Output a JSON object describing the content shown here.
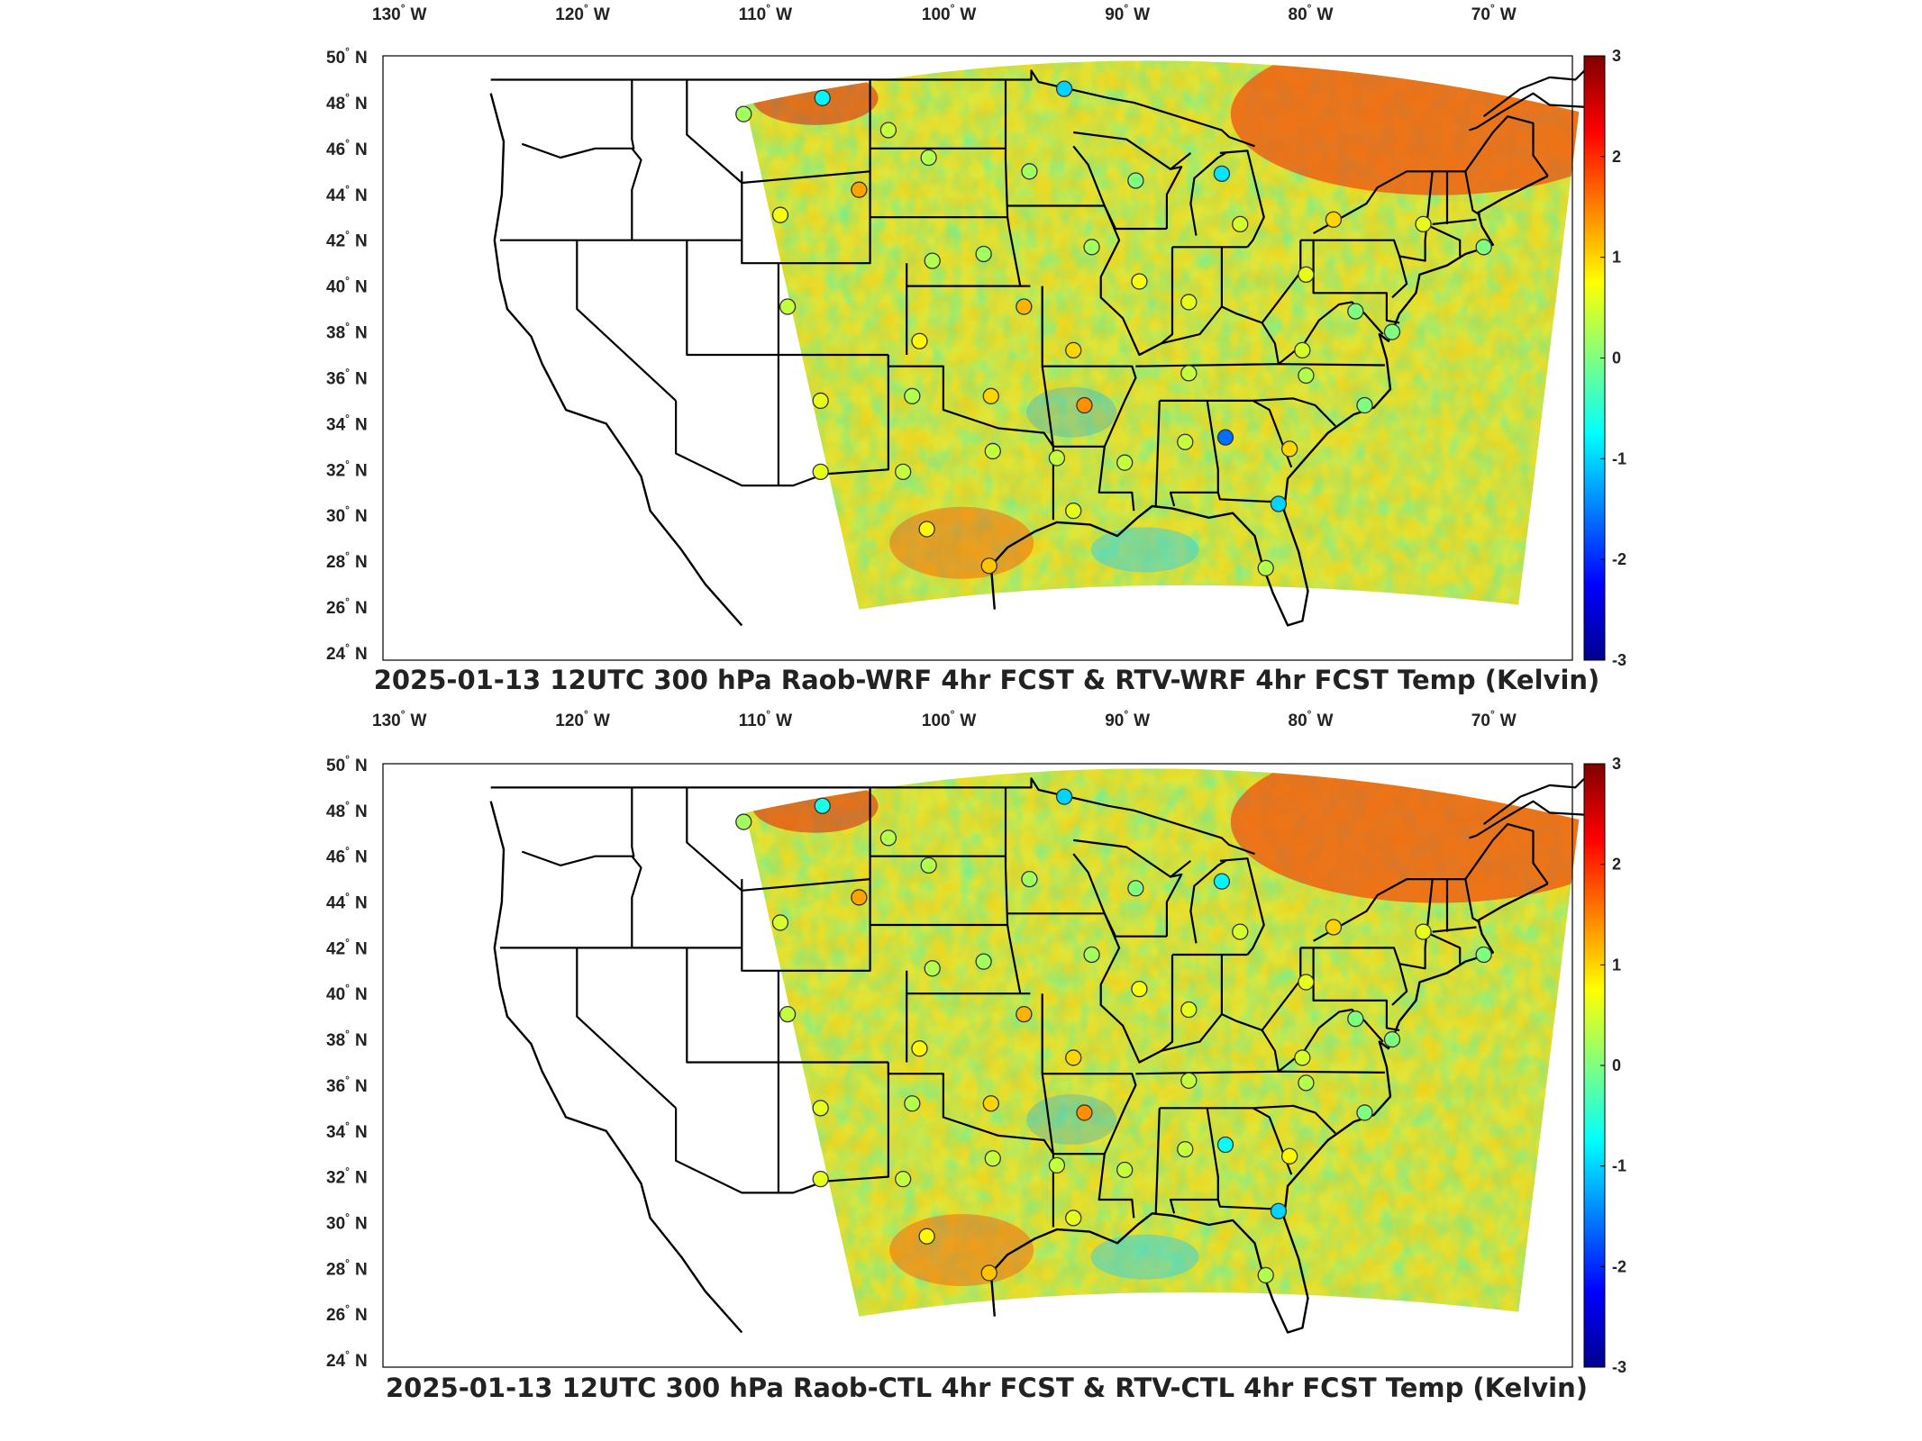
{
  "panels": [
    {
      "title": "2025-01-13 12UTC 300 hPa Raob-WRF 4hr FCST & RTV-WRF 4hr FCST Temp (Kelvin)",
      "stations": [
        {
          "lon": -110.9,
          "lat": 47.5,
          "v": 0.2
        },
        {
          "lon": -106.6,
          "lat": 48.2,
          "v": -0.8
        },
        {
          "lon": -93.4,
          "lat": 48.6,
          "v": -1.0
        },
        {
          "lon": -103.0,
          "lat": 46.8,
          "v": 0.4
        },
        {
          "lon": -100.8,
          "lat": 45.6,
          "v": 0.3
        },
        {
          "lon": -95.3,
          "lat": 45.0,
          "v": 0.2
        },
        {
          "lon": -89.5,
          "lat": 44.6,
          "v": 0.0
        },
        {
          "lon": -84.8,
          "lat": 44.9,
          "v": -0.9
        },
        {
          "lon": -108.9,
          "lat": 43.1,
          "v": 0.7
        },
        {
          "lon": -104.6,
          "lat": 44.2,
          "v": 1.3
        },
        {
          "lon": -100.6,
          "lat": 41.1,
          "v": 0.3
        },
        {
          "lon": -97.8,
          "lat": 41.4,
          "v": 0.2
        },
        {
          "lon": -91.9,
          "lat": 41.7,
          "v": 0.2
        },
        {
          "lon": -89.3,
          "lat": 40.2,
          "v": 0.7
        },
        {
          "lon": -83.8,
          "lat": 42.7,
          "v": 0.5
        },
        {
          "lon": -78.7,
          "lat": 42.9,
          "v": 1.0
        },
        {
          "lon": -73.8,
          "lat": 42.7,
          "v": 0.6
        },
        {
          "lon": -80.2,
          "lat": 40.5,
          "v": 0.6
        },
        {
          "lon": -86.6,
          "lat": 39.3,
          "v": 0.6
        },
        {
          "lon": -77.5,
          "lat": 38.9,
          "v": 0.0
        },
        {
          "lon": -75.5,
          "lat": 38.0,
          "v": 0.0
        },
        {
          "lon": -70.5,
          "lat": 41.7,
          "v": 0.0
        },
        {
          "lon": -108.5,
          "lat": 39.1,
          "v": 0.4
        },
        {
          "lon": -101.3,
          "lat": 37.6,
          "v": 0.8
        },
        {
          "lon": -95.6,
          "lat": 39.1,
          "v": 1.2
        },
        {
          "lon": -92.9,
          "lat": 37.2,
          "v": 1.0
        },
        {
          "lon": -80.4,
          "lat": 37.2,
          "v": 0.5
        },
        {
          "lon": -86.6,
          "lat": 36.2,
          "v": 0.4
        },
        {
          "lon": -80.2,
          "lat": 36.1,
          "v": 0.3
        },
        {
          "lon": -77.0,
          "lat": 34.8,
          "v": 0.0
        },
        {
          "lon": -106.7,
          "lat": 35.0,
          "v": 0.6
        },
        {
          "lon": -101.7,
          "lat": 35.2,
          "v": 0.3
        },
        {
          "lon": -97.4,
          "lat": 35.2,
          "v": 1.0
        },
        {
          "lon": -92.3,
          "lat": 34.8,
          "v": 1.4
        },
        {
          "lon": -97.3,
          "lat": 32.8,
          "v": 0.4
        },
        {
          "lon": -93.8,
          "lat": 32.5,
          "v": 0.4
        },
        {
          "lon": -90.1,
          "lat": 32.3,
          "v": 0.4
        },
        {
          "lon": -86.8,
          "lat": 33.2,
          "v": 0.4
        },
        {
          "lon": -84.6,
          "lat": 33.4,
          "v": -1.6
        },
        {
          "lon": -81.1,
          "lat": 32.9,
          "v": 1.0
        },
        {
          "lon": -106.7,
          "lat": 31.9,
          "v": 0.6
        },
        {
          "lon": -102.2,
          "lat": 31.9,
          "v": 0.4
        },
        {
          "lon": -100.9,
          "lat": 29.4,
          "v": 0.8
        },
        {
          "lon": -97.5,
          "lat": 27.8,
          "v": 1.1
        },
        {
          "lon": -92.9,
          "lat": 30.2,
          "v": 0.6
        },
        {
          "lon": -81.7,
          "lat": 30.5,
          "v": -1.0
        },
        {
          "lon": -82.4,
          "lat": 27.7,
          "v": 0.3
        }
      ]
    },
    {
      "title": "2025-01-13 12UTC 300 hPa Raob-CTL 4hr FCST & RTV-CTL 4hr FCST Temp (Kelvin)",
      "stations": [
        {
          "lon": -110.9,
          "lat": 47.5,
          "v": 0.2
        },
        {
          "lon": -106.6,
          "lat": 48.2,
          "v": -0.6
        },
        {
          "lon": -93.4,
          "lat": 48.6,
          "v": -1.0
        },
        {
          "lon": -103.0,
          "lat": 46.8,
          "v": 0.3
        },
        {
          "lon": -100.8,
          "lat": 45.6,
          "v": 0.3
        },
        {
          "lon": -95.3,
          "lat": 45.0,
          "v": 0.2
        },
        {
          "lon": -89.5,
          "lat": 44.6,
          "v": 0.0
        },
        {
          "lon": -84.8,
          "lat": 44.9,
          "v": -0.8
        },
        {
          "lon": -108.9,
          "lat": 43.1,
          "v": 0.5
        },
        {
          "lon": -104.6,
          "lat": 44.2,
          "v": 1.3
        },
        {
          "lon": -100.6,
          "lat": 41.1,
          "v": 0.3
        },
        {
          "lon": -97.8,
          "lat": 41.4,
          "v": 0.2
        },
        {
          "lon": -91.9,
          "lat": 41.7,
          "v": 0.2
        },
        {
          "lon": -89.3,
          "lat": 40.2,
          "v": 0.7
        },
        {
          "lon": -83.8,
          "lat": 42.7,
          "v": 0.5
        },
        {
          "lon": -78.7,
          "lat": 42.9,
          "v": 1.0
        },
        {
          "lon": -73.8,
          "lat": 42.7,
          "v": 0.6
        },
        {
          "lon": -80.2,
          "lat": 40.5,
          "v": 0.6
        },
        {
          "lon": -86.6,
          "lat": 39.3,
          "v": 0.6
        },
        {
          "lon": -77.5,
          "lat": 38.9,
          "v": 0.0
        },
        {
          "lon": -75.5,
          "lat": 38.0,
          "v": 0.0
        },
        {
          "lon": -70.5,
          "lat": 41.7,
          "v": 0.0
        },
        {
          "lon": -108.5,
          "lat": 39.1,
          "v": 0.4
        },
        {
          "lon": -101.3,
          "lat": 37.6,
          "v": 0.8
        },
        {
          "lon": -95.6,
          "lat": 39.1,
          "v": 1.2
        },
        {
          "lon": -92.9,
          "lat": 37.2,
          "v": 1.0
        },
        {
          "lon": -80.4,
          "lat": 37.2,
          "v": 0.5
        },
        {
          "lon": -86.6,
          "lat": 36.2,
          "v": 0.4
        },
        {
          "lon": -80.2,
          "lat": 36.1,
          "v": 0.3
        },
        {
          "lon": -77.0,
          "lat": 34.8,
          "v": 0.0
        },
        {
          "lon": -106.7,
          "lat": 35.0,
          "v": 0.6
        },
        {
          "lon": -101.7,
          "lat": 35.2,
          "v": 0.3
        },
        {
          "lon": -97.4,
          "lat": 35.2,
          "v": 1.0
        },
        {
          "lon": -92.3,
          "lat": 34.8,
          "v": 1.4
        },
        {
          "lon": -97.3,
          "lat": 32.8,
          "v": 0.4
        },
        {
          "lon": -93.8,
          "lat": 32.5,
          "v": 0.4
        },
        {
          "lon": -90.1,
          "lat": 32.3,
          "v": 0.4
        },
        {
          "lon": -86.8,
          "lat": 33.2,
          "v": 0.4
        },
        {
          "lon": -84.6,
          "lat": 33.4,
          "v": -0.7
        },
        {
          "lon": -81.1,
          "lat": 32.9,
          "v": 0.8
        },
        {
          "lon": -106.7,
          "lat": 31.9,
          "v": 0.6
        },
        {
          "lon": -102.2,
          "lat": 31.9,
          "v": 0.4
        },
        {
          "lon": -100.9,
          "lat": 29.4,
          "v": 0.8
        },
        {
          "lon": -97.5,
          "lat": 27.8,
          "v": 1.1
        },
        {
          "lon": -92.9,
          "lat": 30.2,
          "v": 0.6
        },
        {
          "lon": -81.7,
          "lat": 30.5,
          "v": -1.0
        },
        {
          "lon": -82.4,
          "lat": 27.7,
          "v": 0.3
        }
      ]
    }
  ],
  "lon_ticks": [
    "130",
    "120",
    "110",
    "100",
    "90",
    "80",
    "70"
  ],
  "lon_suffix": "W",
  "lat_ticks": [
    "50",
    "48",
    "46",
    "44",
    "42",
    "40",
    "38",
    "36",
    "34",
    "32",
    "30",
    "28",
    "26",
    "24"
  ],
  "lat_suffix": "N",
  "degree_mark": "°",
  "colorbar": {
    "ticks": [
      "3",
      "2",
      "1",
      "0",
      "-1",
      "-2",
      "-3"
    ],
    "range": [
      -3,
      3
    ],
    "colormap": "jet"
  }
}
